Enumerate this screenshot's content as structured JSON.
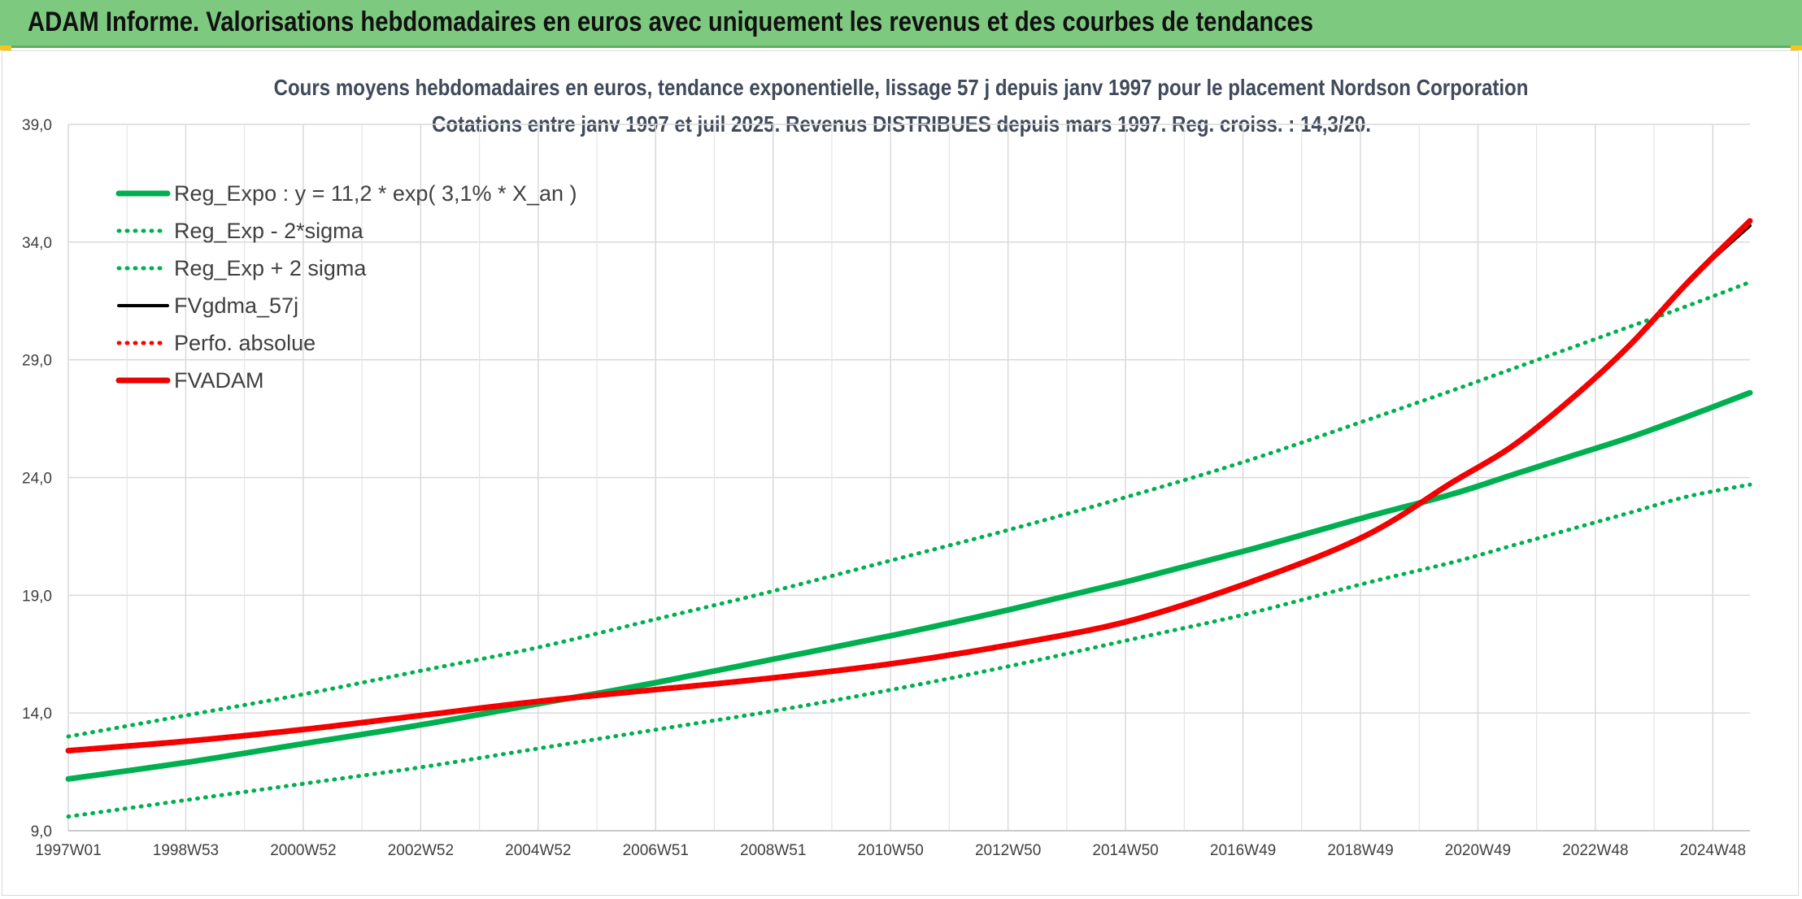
{
  "header": {
    "title": "ADAM Informe. Valorisations hebdomadaires en euros avec uniquement les revenus et des courbes de tendances"
  },
  "chart_data": {
    "type": "line",
    "title": "Cours moyens hebdomadaires en euros, tendance exponentielle, lissage 57 j depuis janv 1997 pour le placement Nordson Corporation",
    "subtitle": "Cotations entre janv 1997 et juil 2025. Revenus DISTRIBUES depuis mars 1997. Reg. croiss. : 14,3/20.",
    "x_tick_labels": [
      "1997W01",
      "1998W53",
      "2000W52",
      "2002W52",
      "2004W52",
      "2006W51",
      "2008W51",
      "2010W50",
      "2012W50",
      "2014W50",
      "2016W49",
      "2018W49",
      "2020W49",
      "2022W48",
      "2024W48"
    ],
    "x_range": [
      1997.0,
      2025.55
    ],
    "y_tick_labels": [
      "9,0",
      "14,0",
      "19,0",
      "24,0",
      "29,0",
      "34,0",
      "39,0"
    ],
    "ylim": [
      9.0,
      39.0
    ],
    "grid": true,
    "legend_position": "top-left",
    "x_points": [
      1997.0,
      1999.0,
      2001.0,
      2003.0,
      2005.0,
      2007.0,
      2009.0,
      2011.0,
      2013.0,
      2015.0,
      2017.0,
      2019.0,
      2020.5,
      2021.5,
      2022.5,
      2023.5,
      2024.5,
      2025.55
    ],
    "series": [
      {
        "name": "Reg_Expo : y = 11,2 * exp( 3,1% *  X_an )",
        "color": "#00b050",
        "style": "solid",
        "width": "thick",
        "values": [
          11.2,
          11.9,
          12.7,
          13.5,
          14.4,
          15.3,
          16.3,
          17.3,
          18.4,
          19.6,
          20.9,
          22.3,
          23.3,
          24.1,
          24.9,
          25.7,
          26.6,
          27.6
        ]
      },
      {
        "name": "Reg_Exp - 2*sigma",
        "color": "#00b050",
        "style": "dotted",
        "width": "medium",
        "values": [
          9.6,
          10.3,
          11.0,
          11.7,
          12.5,
          13.3,
          14.1,
          15.0,
          16.0,
          17.1,
          18.2,
          19.5,
          20.4,
          21.1,
          21.8,
          22.5,
          23.2,
          23.7
        ]
      },
      {
        "name": "Reg_Exp + 2 sigma",
        "color": "#00b050",
        "style": "dotted",
        "width": "medium",
        "values": [
          13.0,
          13.9,
          14.8,
          15.8,
          16.8,
          18.0,
          19.2,
          20.5,
          21.8,
          23.2,
          24.7,
          26.4,
          27.7,
          28.6,
          29.5,
          30.4,
          31.3,
          32.3
        ]
      },
      {
        "name": "FVgdma_57j",
        "color": "#000000",
        "style": "solid",
        "width": "medium",
        "values": [
          12.4,
          12.8,
          13.3,
          13.9,
          14.5,
          15.0,
          15.5,
          16.1,
          16.9,
          17.9,
          19.5,
          21.5,
          23.8,
          25.3,
          27.3,
          29.6,
          32.3,
          34.7
        ]
      },
      {
        "name": "Perfo. absolue",
        "color": "#ff0000",
        "style": "dotted",
        "width": "medium",
        "values": [
          12.4,
          12.8,
          13.3,
          13.9,
          14.5,
          15.0,
          15.5,
          16.1,
          16.9,
          17.9,
          19.5,
          21.5,
          23.8,
          25.3,
          27.3,
          29.6,
          32.3,
          34.8
        ]
      },
      {
        "name": "FVADAM",
        "color": "#ee0000",
        "style": "solid",
        "width": "thick",
        "values": [
          12.4,
          12.8,
          13.3,
          13.9,
          14.5,
          15.0,
          15.5,
          16.1,
          16.9,
          17.9,
          19.5,
          21.5,
          23.8,
          25.3,
          27.3,
          29.6,
          32.3,
          34.9
        ]
      }
    ]
  }
}
